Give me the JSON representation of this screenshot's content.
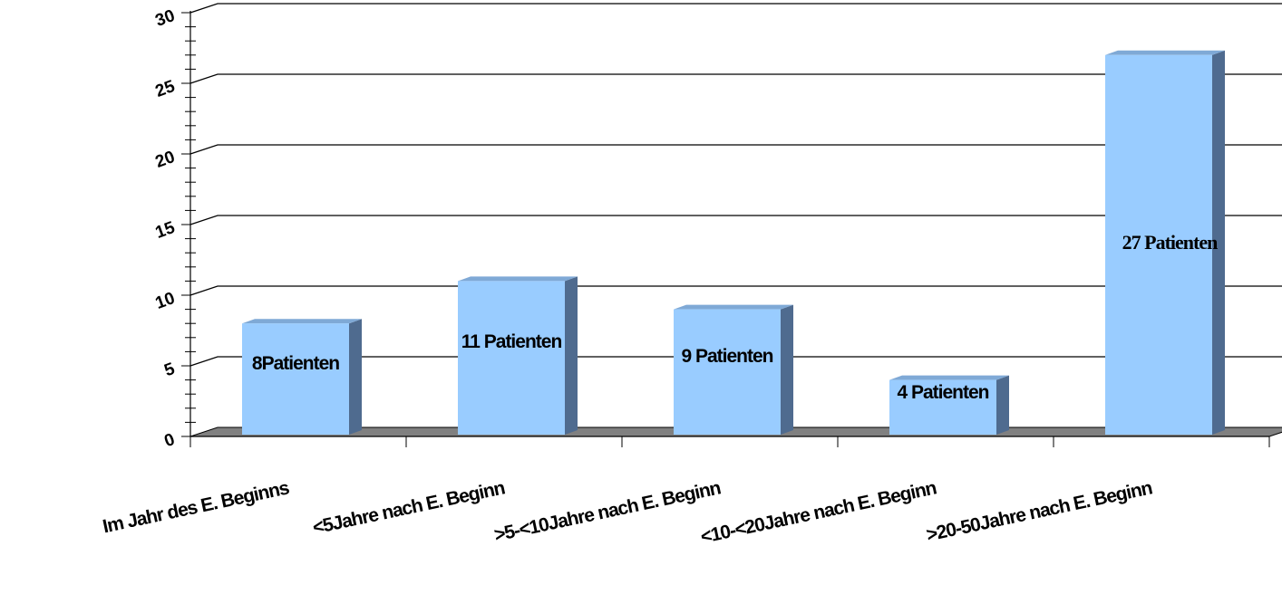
{
  "chart_data": {
    "type": "bar",
    "categories": [
      "Im Jahr des E. Beginns",
      "<5Jahre nach E. Beginn",
      ">5-<10Jahre nach E. Beginn",
      "<10-<20Jahre nach E. Beginn",
      ">20-50Jahre nach E. Beginn"
    ],
    "values": [
      8,
      11,
      9,
      4,
      27
    ],
    "data_labels": [
      "8Patienten",
      "11 Patienten",
      "9 Patienten",
      "4 Patienten",
      "27 Patienten"
    ],
    "ylim": [
      0,
      30
    ],
    "yticks": [
      0,
      5,
      10,
      15,
      20,
      25,
      30
    ],
    "ytick_labels": [
      "0",
      "5",
      "10",
      "15",
      "20",
      "25",
      "30"
    ],
    "grid": true,
    "legend": "none",
    "style": "3d",
    "colors": {
      "bar_front": "#99ccff",
      "bar_side": "#4f6b8f",
      "bar_top": "#7fa9d6",
      "floor": "#808080",
      "grid": "#000000"
    }
  }
}
